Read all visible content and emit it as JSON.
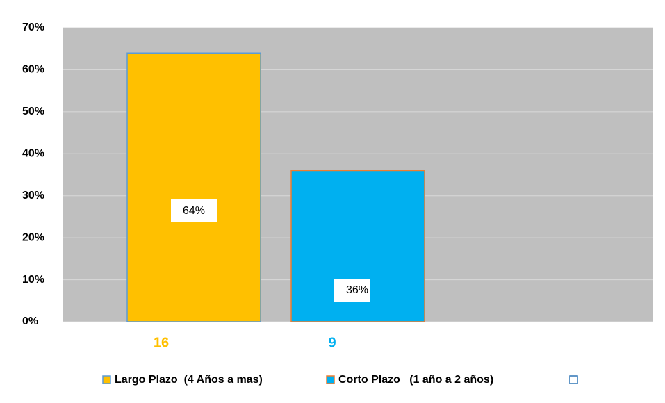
{
  "chart_data": {
    "type": "bar",
    "categories": [
      "16",
      "9",
      null
    ],
    "values": [
      64,
      36,
      null
    ],
    "value_labels": [
      "64%",
      "36%",
      null
    ],
    "colors": [
      "#ffc000",
      "#00b0f0",
      "#ffffff"
    ],
    "edgecolors": [
      "#5b9bd5",
      "#ed7d31",
      "#2e75b6"
    ],
    "legend": [
      "Largo Plazo  (4 Años a mas)",
      "Corto Plazo   (1 año a 2 años)",
      null
    ],
    "ylim": [
      0,
      70
    ],
    "yticks": [
      {
        "value": 0,
        "label": "0%"
      },
      {
        "value": 10,
        "label": "10%"
      },
      {
        "value": 20,
        "label": "20%"
      },
      {
        "value": 30,
        "label": "30%"
      },
      {
        "value": 40,
        "label": "40%"
      },
      {
        "value": 50,
        "label": "50%"
      },
      {
        "value": 60,
        "label": "60%"
      },
      {
        "value": 70,
        "label": "70%"
      }
    ],
    "grid": true
  }
}
